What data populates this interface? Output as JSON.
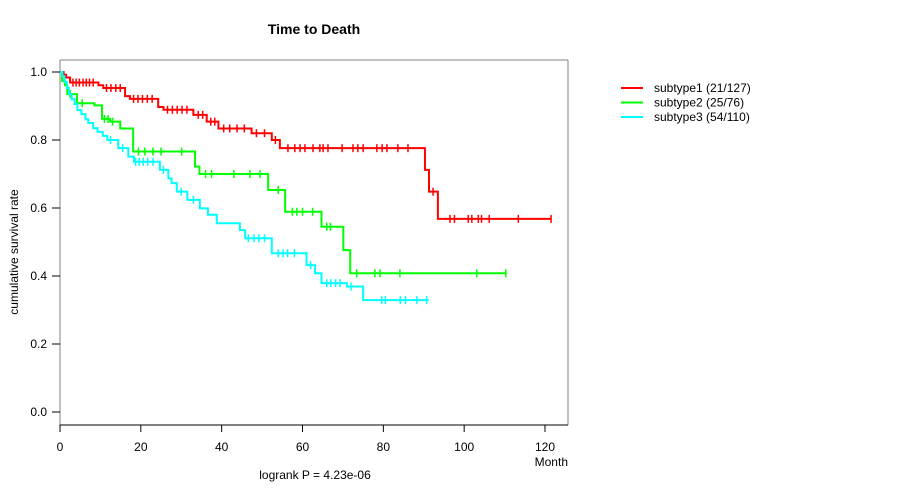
{
  "chart_data": {
    "type": "line",
    "style": "kaplan-meier-step-survival",
    "title": "Time to Death",
    "xlabel": "Month",
    "ylabel": "cumulative survival rate",
    "annotation": "logrank P = 4.23e-06",
    "xlim": [
      0,
      125
    ],
    "ylim": [
      0,
      1.05
    ],
    "x_ticks": [
      0,
      20,
      40,
      60,
      80,
      100,
      120
    ],
    "x_tick_labels": [
      "0",
      "20",
      "40",
      "60",
      "80",
      "100",
      "120"
    ],
    "y_ticks": [
      0.0,
      0.2,
      0.4,
      0.6,
      0.8,
      1.0
    ],
    "y_tick_labels": [
      "0.0",
      "0.2",
      "0.4",
      "0.6",
      "0.8",
      "1.0"
    ],
    "grid": false,
    "legend_position": "right-outside",
    "series": [
      {
        "name": "subtype1",
        "label": "subtype1 (21/127)",
        "events": 21,
        "n": 127,
        "color": "#ff0000",
        "steps": [
          [
            0,
            1.0
          ],
          [
            0.9,
            0.992
          ],
          [
            1.5,
            0.984
          ],
          [
            2.5,
            0.969
          ],
          [
            9.5,
            0.961
          ],
          [
            10.7,
            0.953
          ],
          [
            16.1,
            0.929
          ],
          [
            17.3,
            0.921
          ],
          [
            24.3,
            0.897
          ],
          [
            25.6,
            0.889
          ],
          [
            33.0,
            0.874
          ],
          [
            36.3,
            0.854
          ],
          [
            39.2,
            0.834
          ],
          [
            47.4,
            0.82
          ],
          [
            52.4,
            0.8
          ],
          [
            54.4,
            0.776
          ],
          [
            90.3,
            0.712
          ],
          [
            91.3,
            0.648
          ],
          [
            93.5,
            0.568
          ]
        ],
        "end_month": 121.6,
        "censor_months": [
          3.2,
          4.0,
          4.8,
          5.7,
          6.5,
          7.3,
          8.2,
          11.5,
          12.6,
          13.8,
          14.9,
          18.2,
          19.3,
          20.4,
          21.6,
          22.8,
          26.6,
          27.8,
          29.0,
          30.2,
          31.4,
          34.2,
          35.3,
          37.3,
          38.3,
          40.5,
          42.0,
          43.8,
          45.6,
          48.6,
          50.6,
          53.3,
          56.4,
          58.1,
          59.4,
          60.6,
          62.6,
          64.3,
          65.1,
          66.3,
          69.8,
          72.5,
          73.7,
          75.0,
          78.4,
          79.7,
          80.9,
          83.6,
          86.1,
          92.3,
          96.5,
          97.6,
          101.0,
          101.9,
          103.5,
          104.3,
          106.2,
          113.4,
          121.5
        ]
      },
      {
        "name": "subtype2",
        "label": "subtype2 (25/76)",
        "events": 25,
        "n": 76,
        "color": "#00ff00",
        "steps": [
          [
            0,
            1.0
          ],
          [
            0.5,
            0.974
          ],
          [
            1.2,
            0.961
          ],
          [
            1.8,
            0.935
          ],
          [
            4.2,
            0.908
          ],
          [
            8.5,
            0.902
          ],
          [
            10.4,
            0.862
          ],
          [
            12.4,
            0.854
          ],
          [
            14.9,
            0.834
          ],
          [
            18.1,
            0.766
          ],
          [
            33.4,
            0.722
          ],
          [
            34.5,
            0.7
          ],
          [
            51.5,
            0.653
          ],
          [
            55.7,
            0.589
          ],
          [
            64.7,
            0.545
          ],
          [
            70.1,
            0.476
          ],
          [
            71.8,
            0.408
          ]
        ],
        "end_month": 110.5,
        "censor_months": [
          2.5,
          5.5,
          11.0,
          11.9,
          13.0,
          19.4,
          21.0,
          23.0,
          25.0,
          30.1,
          36.0,
          37.5,
          43.0,
          47.0,
          49.5,
          54.0,
          57.5,
          58.6,
          60.0,
          62.5,
          66.0,
          66.9,
          73.4,
          77.9,
          79.2,
          84.1,
          103.1,
          110.3
        ]
      },
      {
        "name": "subtype3",
        "label": "subtype3 (54/110)",
        "events": 54,
        "n": 110,
        "color": "#00ffff",
        "steps": [
          [
            0,
            1.0
          ],
          [
            0.6,
            0.988
          ],
          [
            1.1,
            0.971
          ],
          [
            1.7,
            0.953
          ],
          [
            2.2,
            0.935
          ],
          [
            2.9,
            0.92
          ],
          [
            3.6,
            0.906
          ],
          [
            4.3,
            0.888
          ],
          [
            5.3,
            0.876
          ],
          [
            6.3,
            0.861
          ],
          [
            7.0,
            0.85
          ],
          [
            8.2,
            0.835
          ],
          [
            9.3,
            0.824
          ],
          [
            10.6,
            0.812
          ],
          [
            11.7,
            0.8
          ],
          [
            14.4,
            0.776
          ],
          [
            16.9,
            0.751
          ],
          [
            18.3,
            0.736
          ],
          [
            24.7,
            0.712
          ],
          [
            26.8,
            0.687
          ],
          [
            27.6,
            0.673
          ],
          [
            28.9,
            0.648
          ],
          [
            31.5,
            0.624
          ],
          [
            34.6,
            0.599
          ],
          [
            36.6,
            0.58
          ],
          [
            38.8,
            0.555
          ],
          [
            44.5,
            0.535
          ],
          [
            45.8,
            0.511
          ],
          [
            52.4,
            0.467
          ],
          [
            61.0,
            0.432
          ],
          [
            63.1,
            0.408
          ],
          [
            64.7,
            0.379
          ],
          [
            71.0,
            0.369
          ],
          [
            75.0,
            0.329
          ]
        ],
        "end_month": 91.2,
        "censor_months": [
          12.5,
          15.5,
          18.7,
          19.6,
          20.6,
          21.7,
          23.0,
          25.6,
          30.0,
          33.0,
          46.6,
          48.0,
          49.2,
          50.6,
          54.0,
          55.2,
          56.3,
          58.0,
          62.0,
          66.0,
          67.0,
          68.2,
          69.3,
          72.0,
          79.6,
          80.5,
          84.2,
          85.5,
          88.3,
          90.7
        ]
      }
    ]
  },
  "colors": {
    "background": "#ffffff",
    "axis_box": "#808080",
    "axis_bottom": "#000000",
    "tick": "#000000",
    "text": "#000000"
  }
}
